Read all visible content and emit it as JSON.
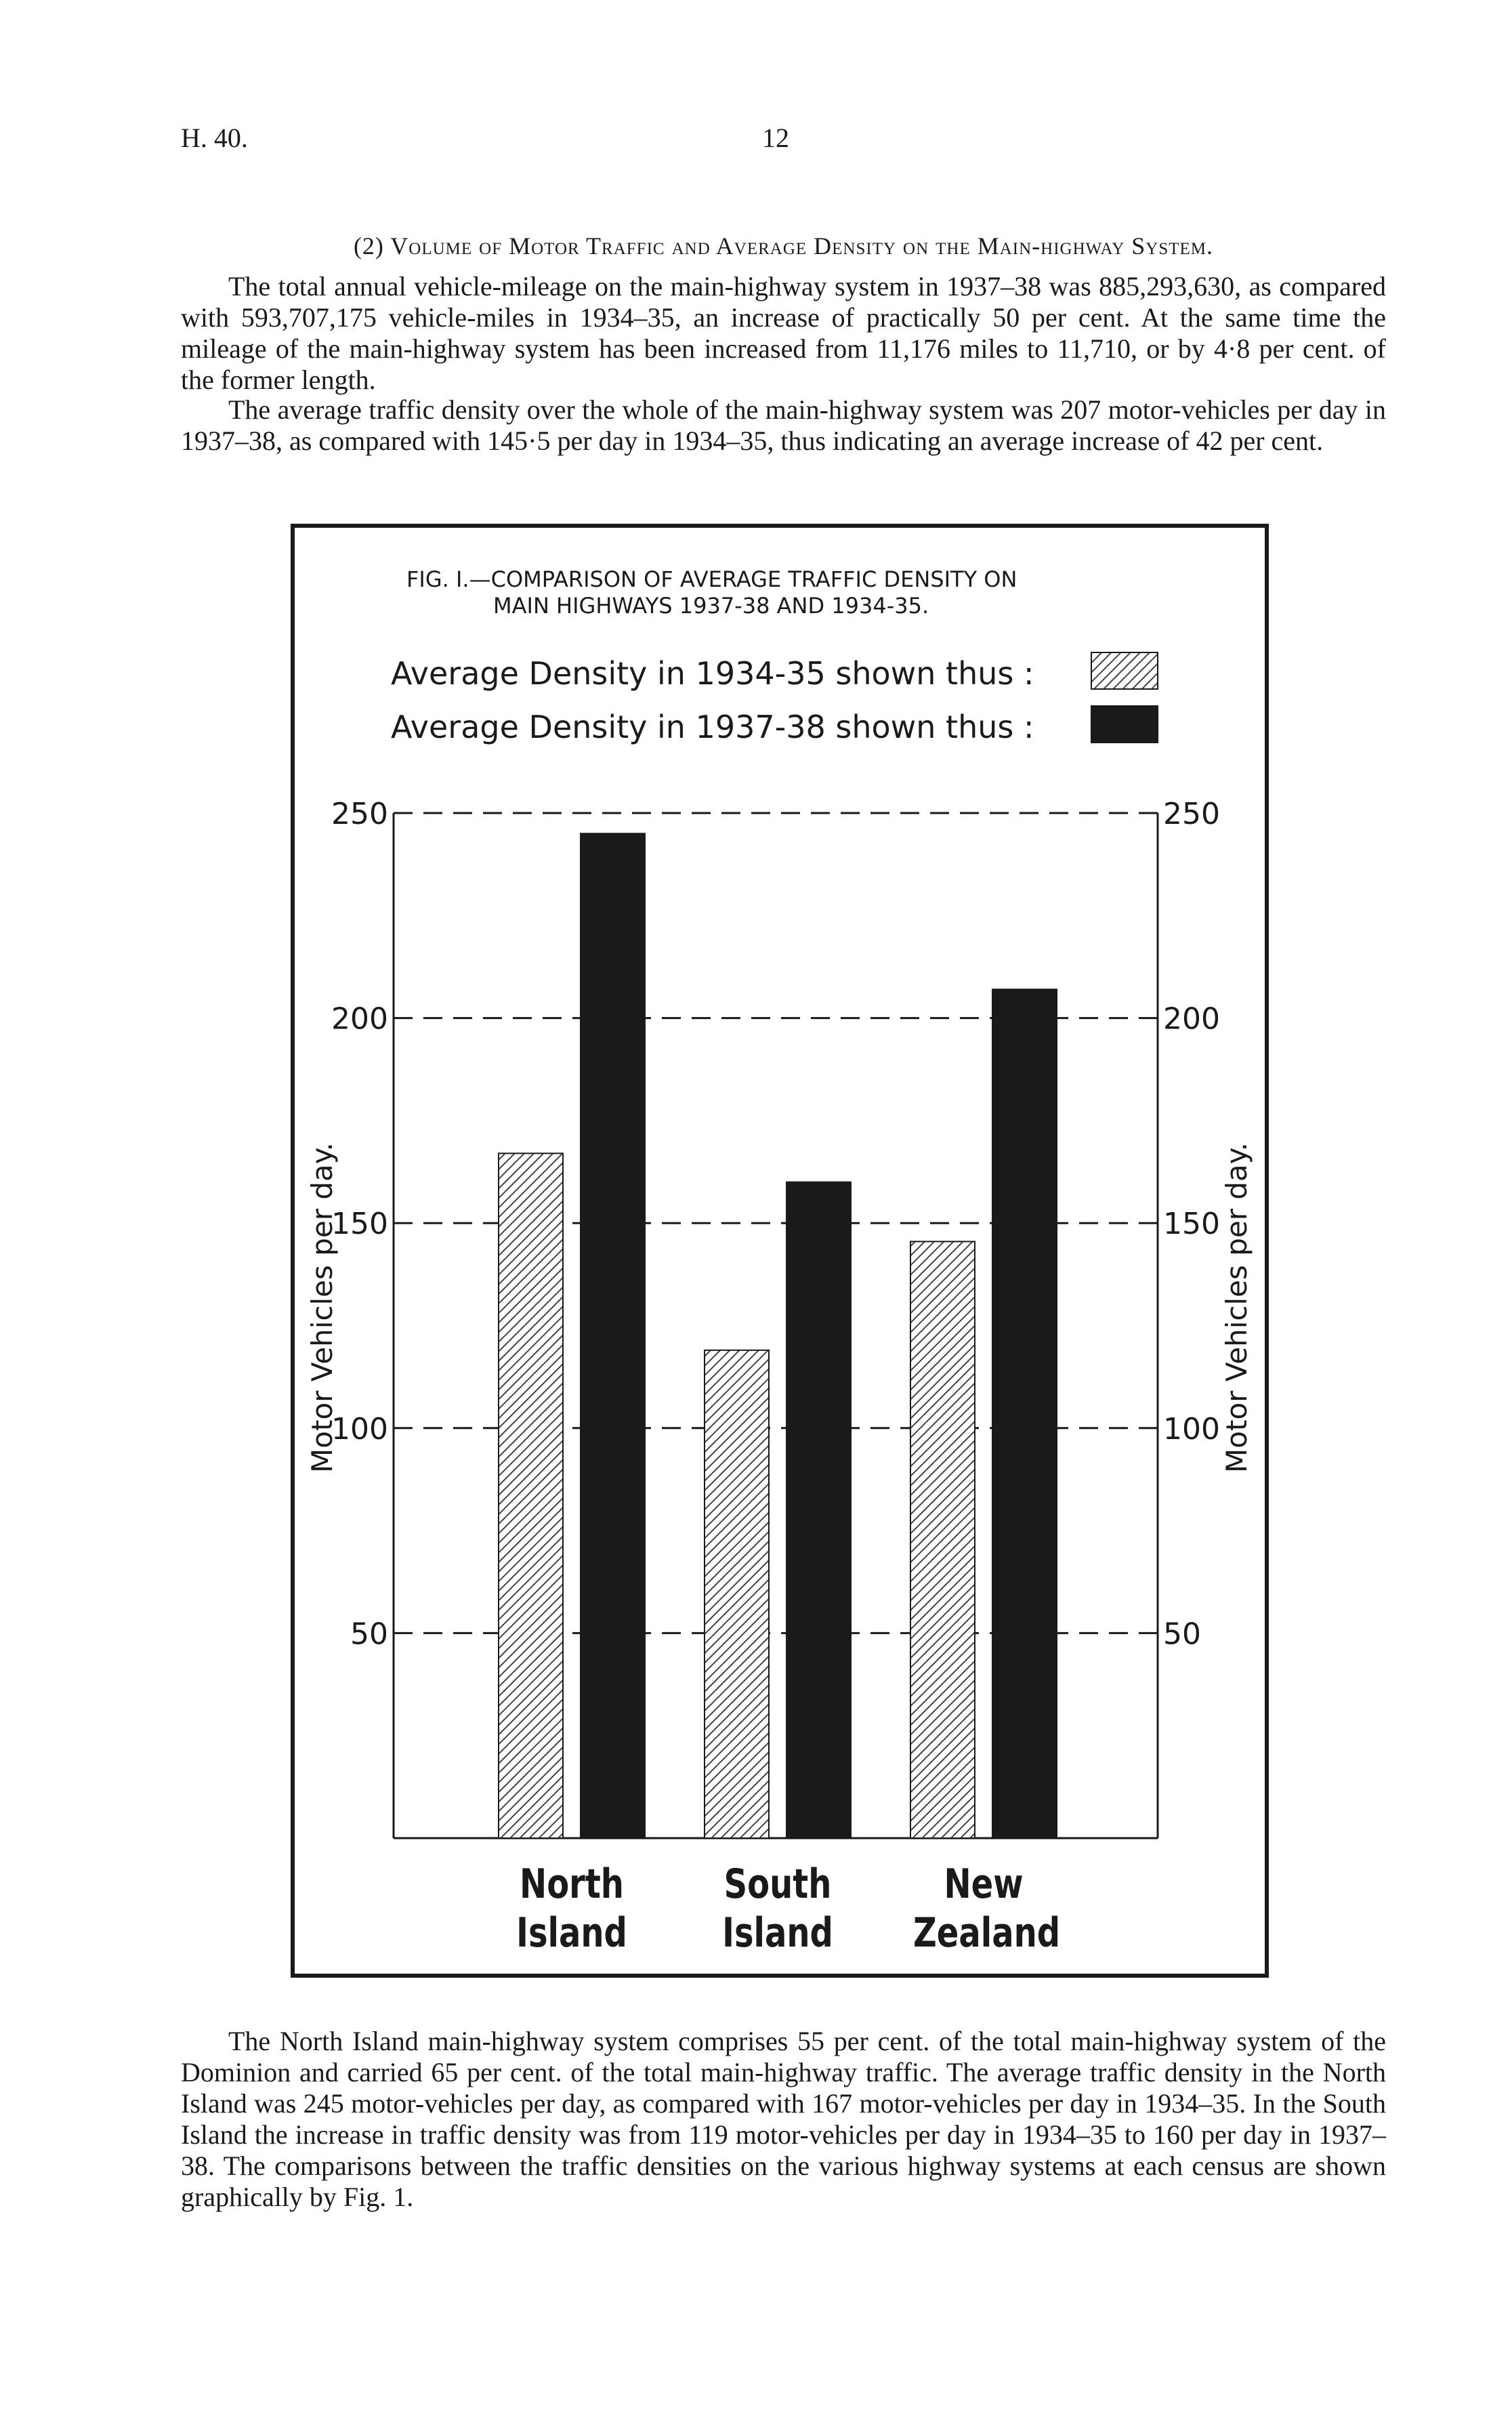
{
  "header": {
    "left": "H. 40.",
    "page_number": "12"
  },
  "section_title": "(2) Volume of Motor Traffic and Average Density on the Main-highway System.",
  "paragraphs": [
    "The total annual vehicle-mileage on the main-highway system in 1937–38 was 885,293,630, as compared with 593,707,175 vehicle-miles in 1934–35, an increase of practically 50 per cent. At the same time the mileage of the main-highway system has been increased from 11,176 miles to 11,710, or by 4·8 per cent. of the former length.",
    "The average traffic density over the whole of the main-highway system was 207 motor-vehicles per day in 1937–38, as compared with 145·5 per day in 1934–35, thus indicating an average increase of 42 per cent."
  ],
  "chart_data": {
    "type": "bar",
    "title_lines": [
      "FIG. I.—COMPARISON OF AVERAGE TRAFFIC DENSITY ON",
      "MAIN HIGHWAYS 1937-38 AND 1934-35."
    ],
    "y_label": "Motor Vehicles per day.",
    "categories": [
      "North Island",
      "South Island",
      "New Zealand"
    ],
    "series": [
      {
        "name": "Average Density in 1934-35 shown thus :",
        "color": "#444444",
        "hatch": true,
        "values": [
          167,
          119,
          145.5
        ]
      },
      {
        "name": "Average Density in 1937-38 shown thus :",
        "color": "#1a1a1a",
        "hatch": false,
        "values": [
          245,
          160,
          207
        ]
      }
    ],
    "ylim": [
      0,
      250
    ],
    "yticks": [
      50,
      100,
      150,
      200,
      250
    ],
    "grid": true
  },
  "closing_paragraph": "The North Island main-highway system comprises 55 per cent. of the total main-highway system of the Dominion and carried 65 per cent. of the total main-highway traffic. The average traffic density in the North Island was 245 motor-vehicles per day, as compared with 167 motor-vehicles per day in 1934–35. In the South Island the increase in traffic density was from 119 motor-vehicles per day in 1934–35 to 160 per day in 1937–38. The comparisons between the traffic densities on the various highway systems at each census are shown graphically by Fig. 1."
}
